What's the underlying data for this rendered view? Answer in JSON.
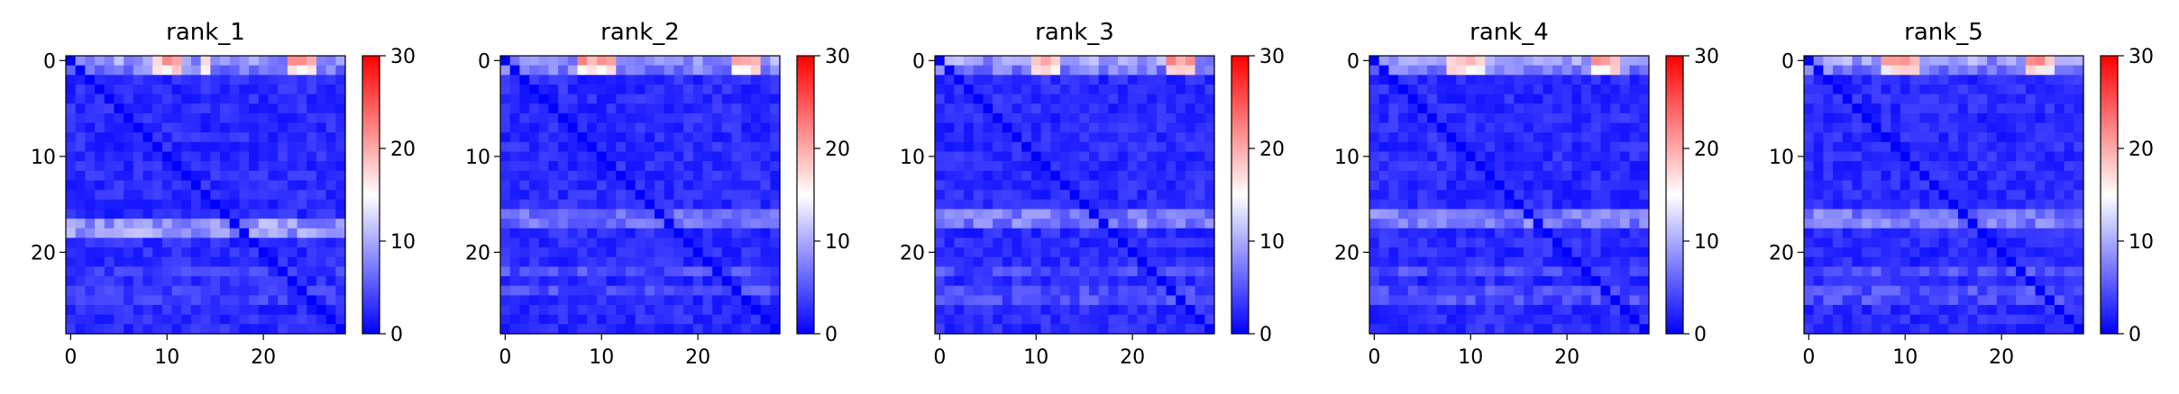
{
  "chart_data": [
    {
      "type": "heatmap",
      "title": "rank_1",
      "x_ticks": [
        "0",
        "10",
        "20"
      ],
      "y_ticks": [
        "0",
        "10",
        "20"
      ],
      "colorbar": {
        "ticks": [
          "0",
          "10",
          "20",
          "30"
        ],
        "min": 0,
        "max": 30,
        "colormap": "bwr"
      },
      "size": 29,
      "bands": {
        "top_rows": [
          0,
          1
        ],
        "hot_cols": [
          9,
          10,
          11,
          14,
          23,
          24,
          25
        ],
        "mid_rows": [
          17,
          18
        ],
        "mid_level": 10,
        "lower_rows": [
          22,
          24,
          25
        ],
        "lower_level": 4
      }
    },
    {
      "type": "heatmap",
      "title": "rank_2",
      "x_ticks": [
        "0",
        "10",
        "20"
      ],
      "y_ticks": [
        "0",
        "10",
        "20"
      ],
      "colorbar": {
        "ticks": [
          "0",
          "10",
          "20",
          "30"
        ],
        "min": 0,
        "max": 30,
        "colormap": "bwr"
      },
      "size": 29,
      "bands": {
        "top_rows": [
          0,
          1
        ],
        "hot_cols": [
          8,
          9,
          10,
          11,
          24,
          25,
          26
        ],
        "mid_rows": [
          16,
          17
        ],
        "mid_level": 7,
        "lower_rows": [
          22,
          24
        ],
        "lower_level": 5
      }
    },
    {
      "type": "heatmap",
      "title": "rank_3",
      "x_ticks": [
        "0",
        "10",
        "20"
      ],
      "y_ticks": [
        "0",
        "10",
        "20"
      ],
      "colorbar": {
        "ticks": [
          "0",
          "10",
          "20",
          "30"
        ],
        "min": 0,
        "max": 30,
        "colormap": "bwr"
      },
      "size": 29,
      "bands": {
        "top_rows": [
          0,
          1
        ],
        "hot_cols": [
          10,
          11,
          12,
          24,
          25,
          26
        ],
        "mid_rows": [
          16,
          17
        ],
        "mid_level": 8,
        "lower_rows": [
          22,
          24,
          25
        ],
        "lower_level": 5
      }
    },
    {
      "type": "heatmap",
      "title": "rank_4",
      "x_ticks": [
        "0",
        "10",
        "20"
      ],
      "y_ticks": [
        "0",
        "10",
        "20"
      ],
      "colorbar": {
        "ticks": [
          "0",
          "10",
          "20",
          "30"
        ],
        "min": 0,
        "max": 30,
        "colormap": "bwr"
      },
      "size": 29,
      "bands": {
        "top_rows": [
          0,
          1
        ],
        "hot_cols": [
          8,
          9,
          10,
          11,
          23,
          24,
          25
        ],
        "mid_rows": [
          16,
          17
        ],
        "mid_level": 8,
        "lower_rows": [
          22,
          24,
          25
        ],
        "lower_level": 5
      }
    },
    {
      "type": "heatmap",
      "title": "rank_5",
      "x_ticks": [
        "0",
        "10",
        "20"
      ],
      "y_ticks": [
        "0",
        "10",
        "20"
      ],
      "colorbar": {
        "ticks": [
          "0",
          "10",
          "20",
          "30"
        ],
        "min": 0,
        "max": 30,
        "colormap": "bwr"
      },
      "size": 29,
      "bands": {
        "top_rows": [
          0,
          1
        ],
        "hot_cols": [
          8,
          9,
          10,
          11,
          23,
          24,
          25
        ],
        "mid_rows": [
          16,
          17
        ],
        "mid_level": 8,
        "lower_rows": [
          22,
          24,
          25
        ],
        "lower_level": 5
      }
    }
  ]
}
